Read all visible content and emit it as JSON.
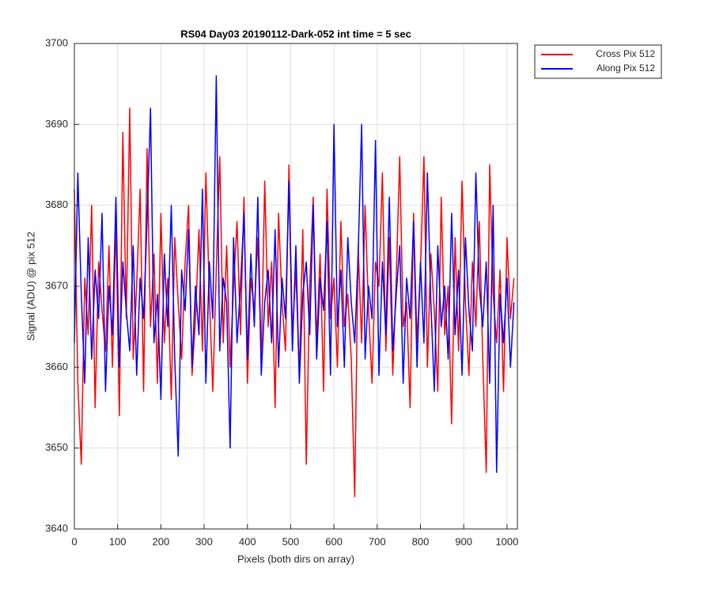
{
  "chart_data": {
    "type": "line",
    "title": "RS04 Day03 20190112-Dark-052 int time = 5 sec",
    "xlabel": "Pixels (both dirs on array)",
    "ylabel": "Signal (ADU) @ pix 512",
    "xlim": [
      0,
      1024
    ],
    "ylim": [
      3640,
      3700
    ],
    "xticks": [
      0,
      100,
      200,
      300,
      400,
      500,
      600,
      700,
      800,
      900,
      1000
    ],
    "yticks": [
      3640,
      3650,
      3660,
      3670,
      3680,
      3690,
      3700
    ],
    "grid": true,
    "legend": "outside-top-right",
    "x": [
      0,
      8,
      16,
      24,
      32,
      40,
      48,
      56,
      64,
      72,
      80,
      88,
      96,
      104,
      112,
      120,
      128,
      136,
      144,
      152,
      160,
      168,
      176,
      184,
      192,
      200,
      208,
      216,
      224,
      232,
      240,
      248,
      256,
      264,
      272,
      280,
      288,
      296,
      304,
      312,
      320,
      328,
      336,
      344,
      352,
      360,
      368,
      376,
      384,
      392,
      400,
      408,
      416,
      424,
      432,
      440,
      448,
      456,
      464,
      472,
      480,
      488,
      496,
      504,
      512,
      520,
      528,
      536,
      544,
      552,
      560,
      568,
      576,
      584,
      592,
      600,
      608,
      616,
      624,
      632,
      640,
      648,
      656,
      664,
      672,
      680,
      688,
      696,
      704,
      712,
      720,
      728,
      736,
      744,
      752,
      760,
      768,
      776,
      784,
      792,
      800,
      808,
      816,
      824,
      832,
      840,
      848,
      856,
      864,
      872,
      880,
      888,
      896,
      904,
      912,
      920,
      928,
      936,
      944,
      952,
      960,
      968,
      976,
      984,
      992,
      1000,
      1008,
      1016
    ],
    "series": [
      {
        "name": "Cross Pix 512",
        "color": "#ff0000",
        "values": [
          3682,
          3658,
          3648,
          3671,
          3664,
          3680,
          3655,
          3673,
          3667,
          3662,
          3675,
          3660,
          3678,
          3654,
          3689,
          3666,
          3692,
          3661,
          3670,
          3682,
          3657,
          3687,
          3665,
          3674,
          3658,
          3679,
          3663,
          3671,
          3656,
          3676,
          3668,
          3661,
          3673,
          3680,
          3659,
          3666,
          3677,
          3662,
          3684,
          3669,
          3657,
          3672,
          3686,
          3663,
          3675,
          3660,
          3670,
          3678,
          3664,
          3681,
          3658,
          3671,
          3667,
          3676,
          3661,
          3683,
          3665,
          3673,
          3655,
          3679,
          3668,
          3662,
          3685,
          3664,
          3672,
          3659,
          3677,
          3648,
          3670,
          3681,
          3663,
          3674,
          3657,
          3682,
          3666,
          3671,
          3660,
          3678,
          3665,
          3669,
          3661,
          3644,
          3675,
          3663,
          3680,
          3667,
          3658,
          3673,
          3670,
          3684,
          3662,
          3676,
          3659,
          3671,
          3686,
          3665,
          3668,
          3655,
          3679,
          3663,
          3672,
          3686,
          3660,
          3674,
          3667,
          3657,
          3681,
          3664,
          3670,
          3653,
          3676,
          3662,
          3683,
          3668,
          3659,
          3673,
          3665,
          3678,
          3661,
          3647,
          3685,
          3669,
          3663,
          3672,
          3657,
          3676,
          3666,
          3671
        ]
      },
      {
        "name": "Along Pix 512",
        "color": "#0000ff",
        "values": [
          3663,
          3684,
          3669,
          3658,
          3676,
          3661,
          3672,
          3666,
          3679,
          3657,
          3670,
          3664,
          3681,
          3660,
          3673,
          3667,
          3662,
          3675,
          3659,
          3671,
          3666,
          3678,
          3692,
          3663,
          3669,
          3656,
          3674,
          3665,
          3680,
          3661,
          3649,
          3672,
          3667,
          3677,
          3660,
          3670,
          3664,
          3682,
          3658,
          3673,
          3666,
          3696,
          3662,
          3671,
          3668,
          3650,
          3676,
          3663,
          3670,
          3679,
          3661,
          3674,
          3665,
          3681,
          3659,
          3668,
          3672,
          3663,
          3677,
          3660,
          3671,
          3666,
          3683,
          3662,
          3675,
          3658,
          3669,
          3673,
          3664,
          3680,
          3661,
          3671,
          3667,
          3678,
          3659,
          3690,
          3665,
          3672,
          3660,
          3676,
          3668,
          3663,
          3674,
          3690,
          3661,
          3670,
          3666,
          3688,
          3659,
          3673,
          3664,
          3681,
          3662,
          3669,
          3675,
          3658,
          3671,
          3666,
          3678,
          3660,
          3673,
          3663,
          3684,
          3668,
          3657,
          3675,
          3665,
          3670,
          3661,
          3679,
          3664,
          3672,
          3659,
          3676,
          3667,
          3662,
          3684,
          3670,
          3665,
          3673,
          3658,
          3680,
          3647,
          3669,
          3663,
          3671,
          3660,
          3668
        ]
      }
    ]
  }
}
